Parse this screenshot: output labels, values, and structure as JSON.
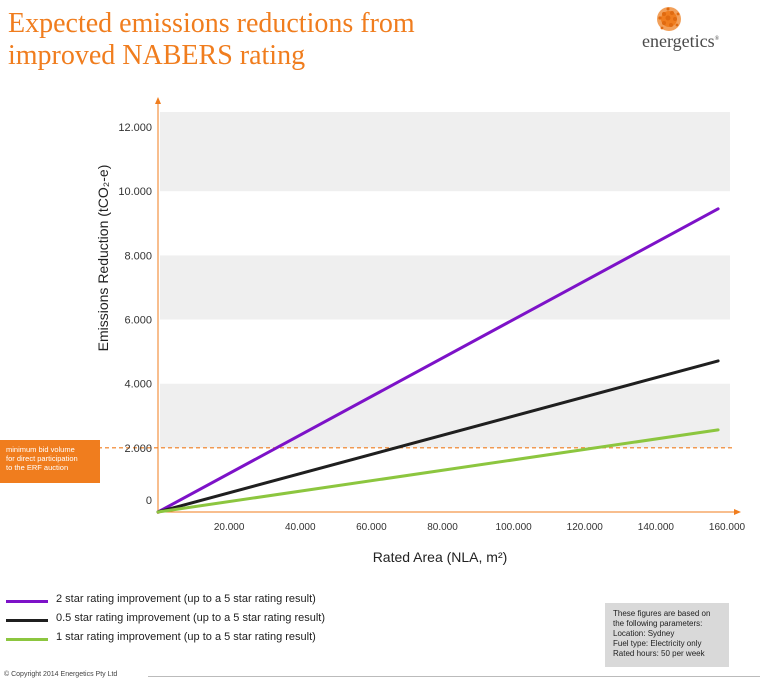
{
  "header": {
    "title_line1": "Expected emissions reductions from",
    "title_line2": "improved NABERS rating",
    "brand": "energetics",
    "brand_mark": "®"
  },
  "chart_data": {
    "type": "line",
    "x": [
      0,
      157500
    ],
    "series": [
      {
        "name": "2 star rating improvement (up to a 5 star rating result)",
        "values": [
          0,
          9450
        ],
        "color": "#7d12c8"
      },
      {
        "name": "0.5 star rating improvement (up to a 5 star rating result)",
        "values": [
          0,
          4710
        ],
        "color": "#1f1f1f"
      },
      {
        "name": "1 star rating improvement (up to a 5 star rating result)",
        "values": [
          0,
          2560
        ],
        "color": "#8cc63f"
      }
    ],
    "reference_line": {
      "y": 2000,
      "color": "#f07d1e",
      "label": "minimum bid volume for direct participation to the ERF auction"
    },
    "xlabel": "Rated Area (NLA, m²)",
    "ylabel": "Emissions Reduction (tCO₂-e)",
    "xticks": [
      20000,
      40000,
      60000,
      80000,
      100000,
      120000,
      140000,
      160000
    ],
    "xtick_labels": [
      "20.000",
      "40.000",
      "60.000",
      "80.000",
      "100.000",
      "120.000",
      "140.000",
      "160.000"
    ],
    "yticks": [
      0,
      2000,
      4000,
      6000,
      8000,
      10000,
      12000
    ],
    "ytick_labels": [
      "0",
      "2.000",
      "4.000",
      "6.000",
      "8.000",
      "10.000",
      "12.000"
    ],
    "xlim": [
      0,
      160000
    ],
    "ylim": [
      0,
      12000
    ],
    "grid": "alternating horizontal bands"
  },
  "callout": {
    "line1": "minimum bid volume",
    "line2": "for direct participation",
    "line3": "to the ERF auction"
  },
  "params": {
    "line1": "These figures are based on",
    "line2": "the following parameters:",
    "line3": "Location: Sydney",
    "line4": "Fuel type: Electricity only",
    "line5": "Rated hours: 50 per week"
  },
  "footer": {
    "copyright": "© Copyright 2014 Energetics Pty Ltd"
  }
}
